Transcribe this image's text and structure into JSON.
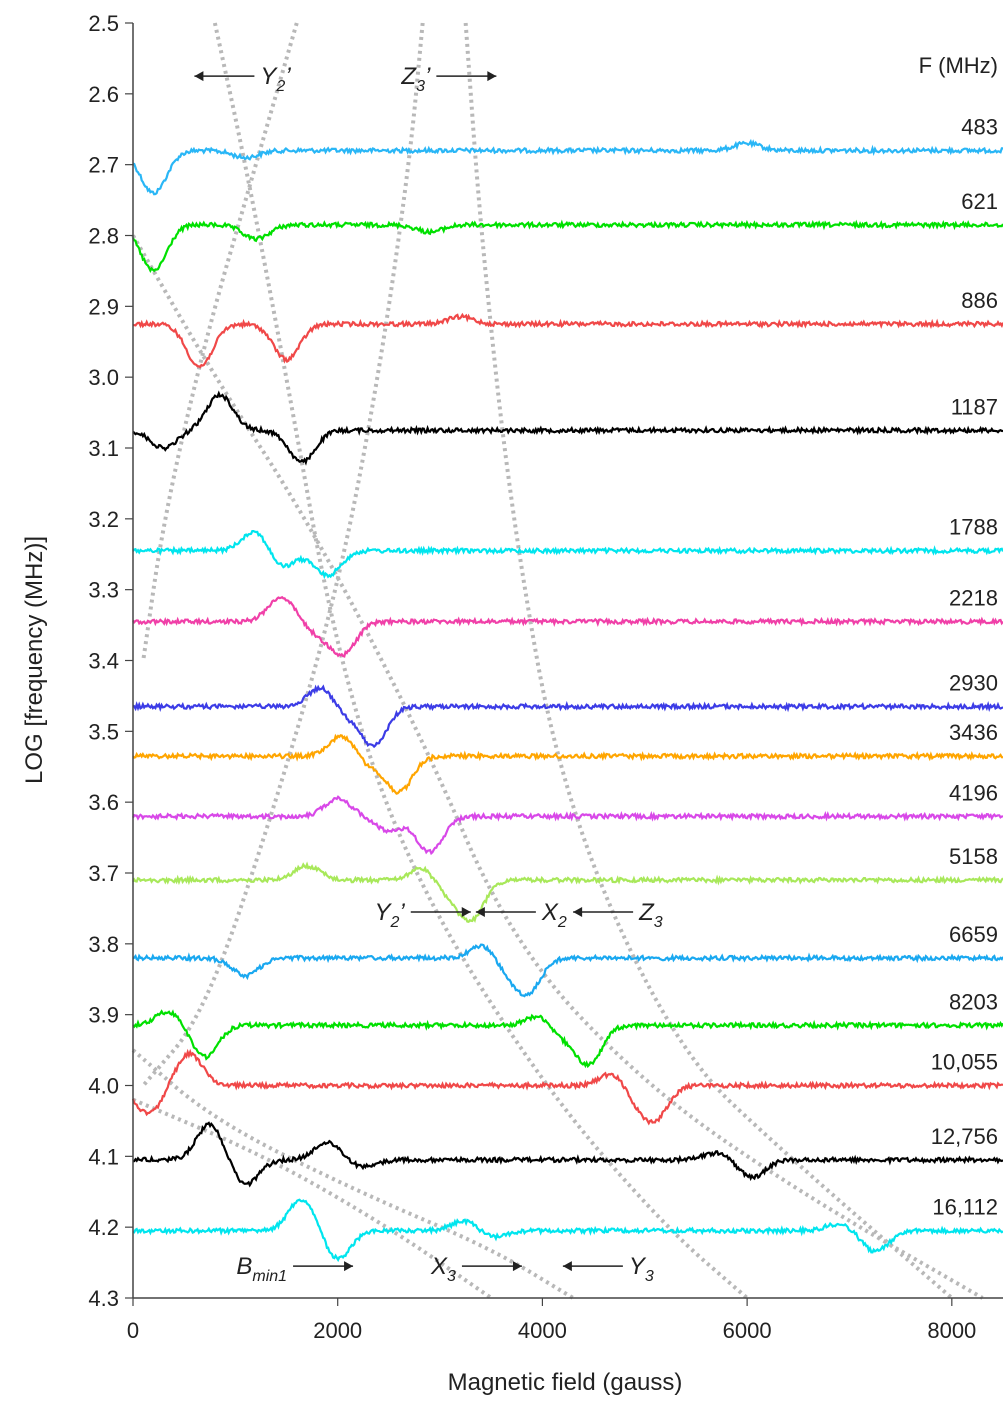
{
  "chart_data": {
    "type": "line",
    "xlabel": "Magnetic field (gauss)",
    "ylabel": "LOG [frequency (MHz)]",
    "xlim": [
      0,
      8500
    ],
    "ylim": [
      4.3,
      2.5
    ],
    "x_ticks": [
      "0",
      "2000",
      "4000",
      "6000",
      "8000"
    ],
    "y_ticks": [
      "2.5",
      "2.6",
      "2.7",
      "2.8",
      "2.9",
      "3.0",
      "3.1",
      "3.2",
      "3.3",
      "3.4",
      "3.5",
      "3.6",
      "3.7",
      "3.8",
      "3.9",
      "4.0",
      "4.1",
      "4.2",
      "4.3"
    ],
    "frequency_header": "F (MHz)",
    "series": [
      {
        "name": "483",
        "color": "#29b6f6",
        "baseline": 2.68,
        "features": [
          {
            "x": 200,
            "d": 0.06
          },
          {
            "x": 1100,
            "d": 0.01
          },
          {
            "x": 6000,
            "d": -0.01
          }
        ]
      },
      {
        "name": "621",
        "color": "#00e000",
        "baseline": 2.785,
        "features": [
          {
            "x": 200,
            "d": 0.065
          },
          {
            "x": 1200,
            "d": 0.02
          },
          {
            "x": 2900,
            "d": 0.01
          }
        ]
      },
      {
        "name": "886",
        "color": "#f04848",
        "baseline": 2.925,
        "features": [
          {
            "x": 450,
            "d": 0.0
          },
          {
            "x": 650,
            "d": 0.06
          },
          {
            "x": 1500,
            "d": 0.05
          },
          {
            "x": 3200,
            "d": -0.01
          }
        ]
      },
      {
        "name": "1187",
        "color": "#000000",
        "baseline": 3.075,
        "features": [
          {
            "x": 300,
            "d": 0.025
          },
          {
            "x": 850,
            "d": -0.05
          },
          {
            "x": 1650,
            "d": 0.045
          }
        ]
      },
      {
        "name": "1788",
        "color": "#00e5ee",
        "baseline": 3.245,
        "features": [
          {
            "x": 1200,
            "d": -0.03
          },
          {
            "x": 1450,
            "d": 0.025
          },
          {
            "x": 1900,
            "d": 0.035
          }
        ]
      },
      {
        "name": "2218",
        "color": "#f040a8",
        "baseline": 3.345,
        "features": [
          {
            "x": 1450,
            "d": -0.035
          },
          {
            "x": 1800,
            "d": 0.015
          },
          {
            "x": 2050,
            "d": 0.045
          }
        ]
      },
      {
        "name": "2930",
        "color": "#3c3ce6",
        "baseline": 3.465,
        "features": [
          {
            "x": 1850,
            "d": -0.03
          },
          {
            "x": 2050,
            "d": 0.015
          },
          {
            "x": 2350,
            "d": 0.055
          }
        ]
      },
      {
        "name": "3436",
        "color": "#ffa500",
        "baseline": 3.535,
        "features": [
          {
            "x": 2050,
            "d": -0.03
          },
          {
            "x": 2300,
            "d": 0.015
          },
          {
            "x": 2600,
            "d": 0.05
          }
        ]
      },
      {
        "name": "4196",
        "color": "#d848e8",
        "baseline": 3.62,
        "features": [
          {
            "x": 2000,
            "d": -0.025
          },
          {
            "x": 2500,
            "d": 0.02
          },
          {
            "x": 2900,
            "d": 0.05
          }
        ]
      },
      {
        "name": "5158",
        "color": "#a8e85a",
        "baseline": 3.71,
        "features": [
          {
            "x": 1700,
            "d": -0.02
          },
          {
            "x": 2850,
            "d": -0.02
          },
          {
            "x": 3050,
            "d": 0.02
          },
          {
            "x": 3300,
            "d": 0.055
          }
        ]
      },
      {
        "name": "6659",
        "color": "#1aa8f0",
        "baseline": 3.82,
        "features": [
          {
            "x": 1100,
            "d": 0.025
          },
          {
            "x": 3450,
            "d": -0.025
          },
          {
            "x": 3600,
            "d": 0.02
          },
          {
            "x": 3850,
            "d": 0.05
          }
        ]
      },
      {
        "name": "8203",
        "color": "#00e000",
        "baseline": 3.915,
        "features": [
          {
            "x": 350,
            "d": -0.02
          },
          {
            "x": 700,
            "d": 0.045
          },
          {
            "x": 4000,
            "d": -0.02
          },
          {
            "x": 4150,
            "d": 0.02
          },
          {
            "x": 4450,
            "d": 0.055
          }
        ]
      },
      {
        "name": "10,055",
        "color": "#f04848",
        "baseline": 4.0,
        "features": [
          {
            "x": 150,
            "d": 0.04
          },
          {
            "x": 550,
            "d": -0.045
          },
          {
            "x": 4700,
            "d": -0.02
          },
          {
            "x": 4900,
            "d": 0.02
          },
          {
            "x": 5100,
            "d": 0.045
          }
        ]
      },
      {
        "name": "12,756",
        "color": "#000000",
        "baseline": 4.105,
        "features": [
          {
            "x": 750,
            "d": -0.05
          },
          {
            "x": 1100,
            "d": 0.035
          },
          {
            "x": 1900,
            "d": -0.025
          },
          {
            "x": 2250,
            "d": 0.01
          },
          {
            "x": 5700,
            "d": -0.01
          },
          {
            "x": 6050,
            "d": 0.025
          }
        ]
      },
      {
        "name": "16,112",
        "color": "#00e5ee",
        "baseline": 4.205,
        "features": [
          {
            "x": 1650,
            "d": -0.045
          },
          {
            "x": 2000,
            "d": 0.04
          },
          {
            "x": 3250,
            "d": -0.015
          },
          {
            "x": 3500,
            "d": 0.01
          },
          {
            "x": 6900,
            "d": -0.01
          },
          {
            "x": 7250,
            "d": 0.03
          }
        ]
      }
    ],
    "annotations": [
      {
        "base": "Y",
        "sub": "2",
        "prime": "’",
        "x": 3300,
        "y": 3.755,
        "side": "left"
      },
      {
        "base": "Z",
        "sub": "3",
        "prime": "’",
        "x": 3550,
        "y": 2.575,
        "side": "left"
      },
      {
        "base": "X",
        "sub": "2",
        "prime": "",
        "x": 3350,
        "y": 3.755,
        "side": "right"
      },
      {
        "base": "Z",
        "sub": "3",
        "prime": "",
        "x": 4300,
        "y": 3.755,
        "side": "right"
      },
      {
        "base": "Y",
        "sub": "2",
        "prime": "’",
        "x": 600,
        "y": 2.575,
        "side": "right"
      },
      {
        "base": "B",
        "sub": "min1",
        "prime": "",
        "x": 2150,
        "y": 4.255,
        "side": "left"
      },
      {
        "base": "X",
        "sub": "3",
        "prime": "",
        "x": 3800,
        "y": 4.255,
        "side": "left"
      },
      {
        "base": "Y",
        "sub": "3",
        "prime": "",
        "x": 4200,
        "y": 4.255,
        "side": "right"
      }
    ],
    "guide_curves": [
      {
        "name": "Y2'",
        "points": [
          [
            1600,
            2.5
          ],
          [
            1200,
            2.7
          ],
          [
            700,
            2.95
          ],
          [
            300,
            3.2
          ],
          [
            100,
            3.4
          ]
        ]
      },
      {
        "name": "Z3'",
        "points": [
          [
            2830,
            2.5
          ],
          [
            2700,
            2.7
          ],
          [
            2400,
            3.0
          ],
          [
            2000,
            3.3
          ],
          [
            1400,
            3.6
          ],
          [
            700,
            3.9
          ],
          [
            100,
            4.0
          ]
        ]
      },
      {
        "name": "Y2'-upper",
        "points": [
          [
            800,
            2.5
          ],
          [
            1100,
            2.7
          ],
          [
            1500,
            3.0
          ],
          [
            2000,
            3.4
          ],
          [
            2700,
            3.7
          ],
          [
            4000,
            4.0
          ],
          [
            5200,
            4.2
          ],
          [
            6000,
            4.3
          ]
        ]
      },
      {
        "name": "Z3'-upper",
        "points": [
          [
            3250,
            2.5
          ],
          [
            3400,
            2.8
          ],
          [
            3700,
            3.2
          ],
          [
            4200,
            3.6
          ],
          [
            5300,
            3.95
          ],
          [
            6400,
            4.1
          ],
          [
            8000,
            4.3
          ]
        ]
      },
      {
        "name": "X2",
        "points": [
          [
            0,
            2.8
          ],
          [
            800,
            3.0
          ],
          [
            1700,
            3.2
          ],
          [
            2800,
            3.5
          ],
          [
            3700,
            3.8
          ],
          [
            5000,
            4.0
          ],
          [
            6500,
            4.15
          ],
          [
            8300,
            4.3
          ]
        ]
      },
      {
        "name": "X3",
        "points": [
          [
            0,
            3.95
          ],
          [
            800,
            4.05
          ],
          [
            2200,
            4.15
          ],
          [
            3500,
            4.23
          ],
          [
            4300,
            4.3
          ]
        ]
      },
      {
        "name": "Y3",
        "points": [
          [
            0,
            4.02
          ],
          [
            1300,
            4.1
          ],
          [
            2500,
            4.2
          ],
          [
            3500,
            4.3
          ]
        ]
      }
    ]
  }
}
